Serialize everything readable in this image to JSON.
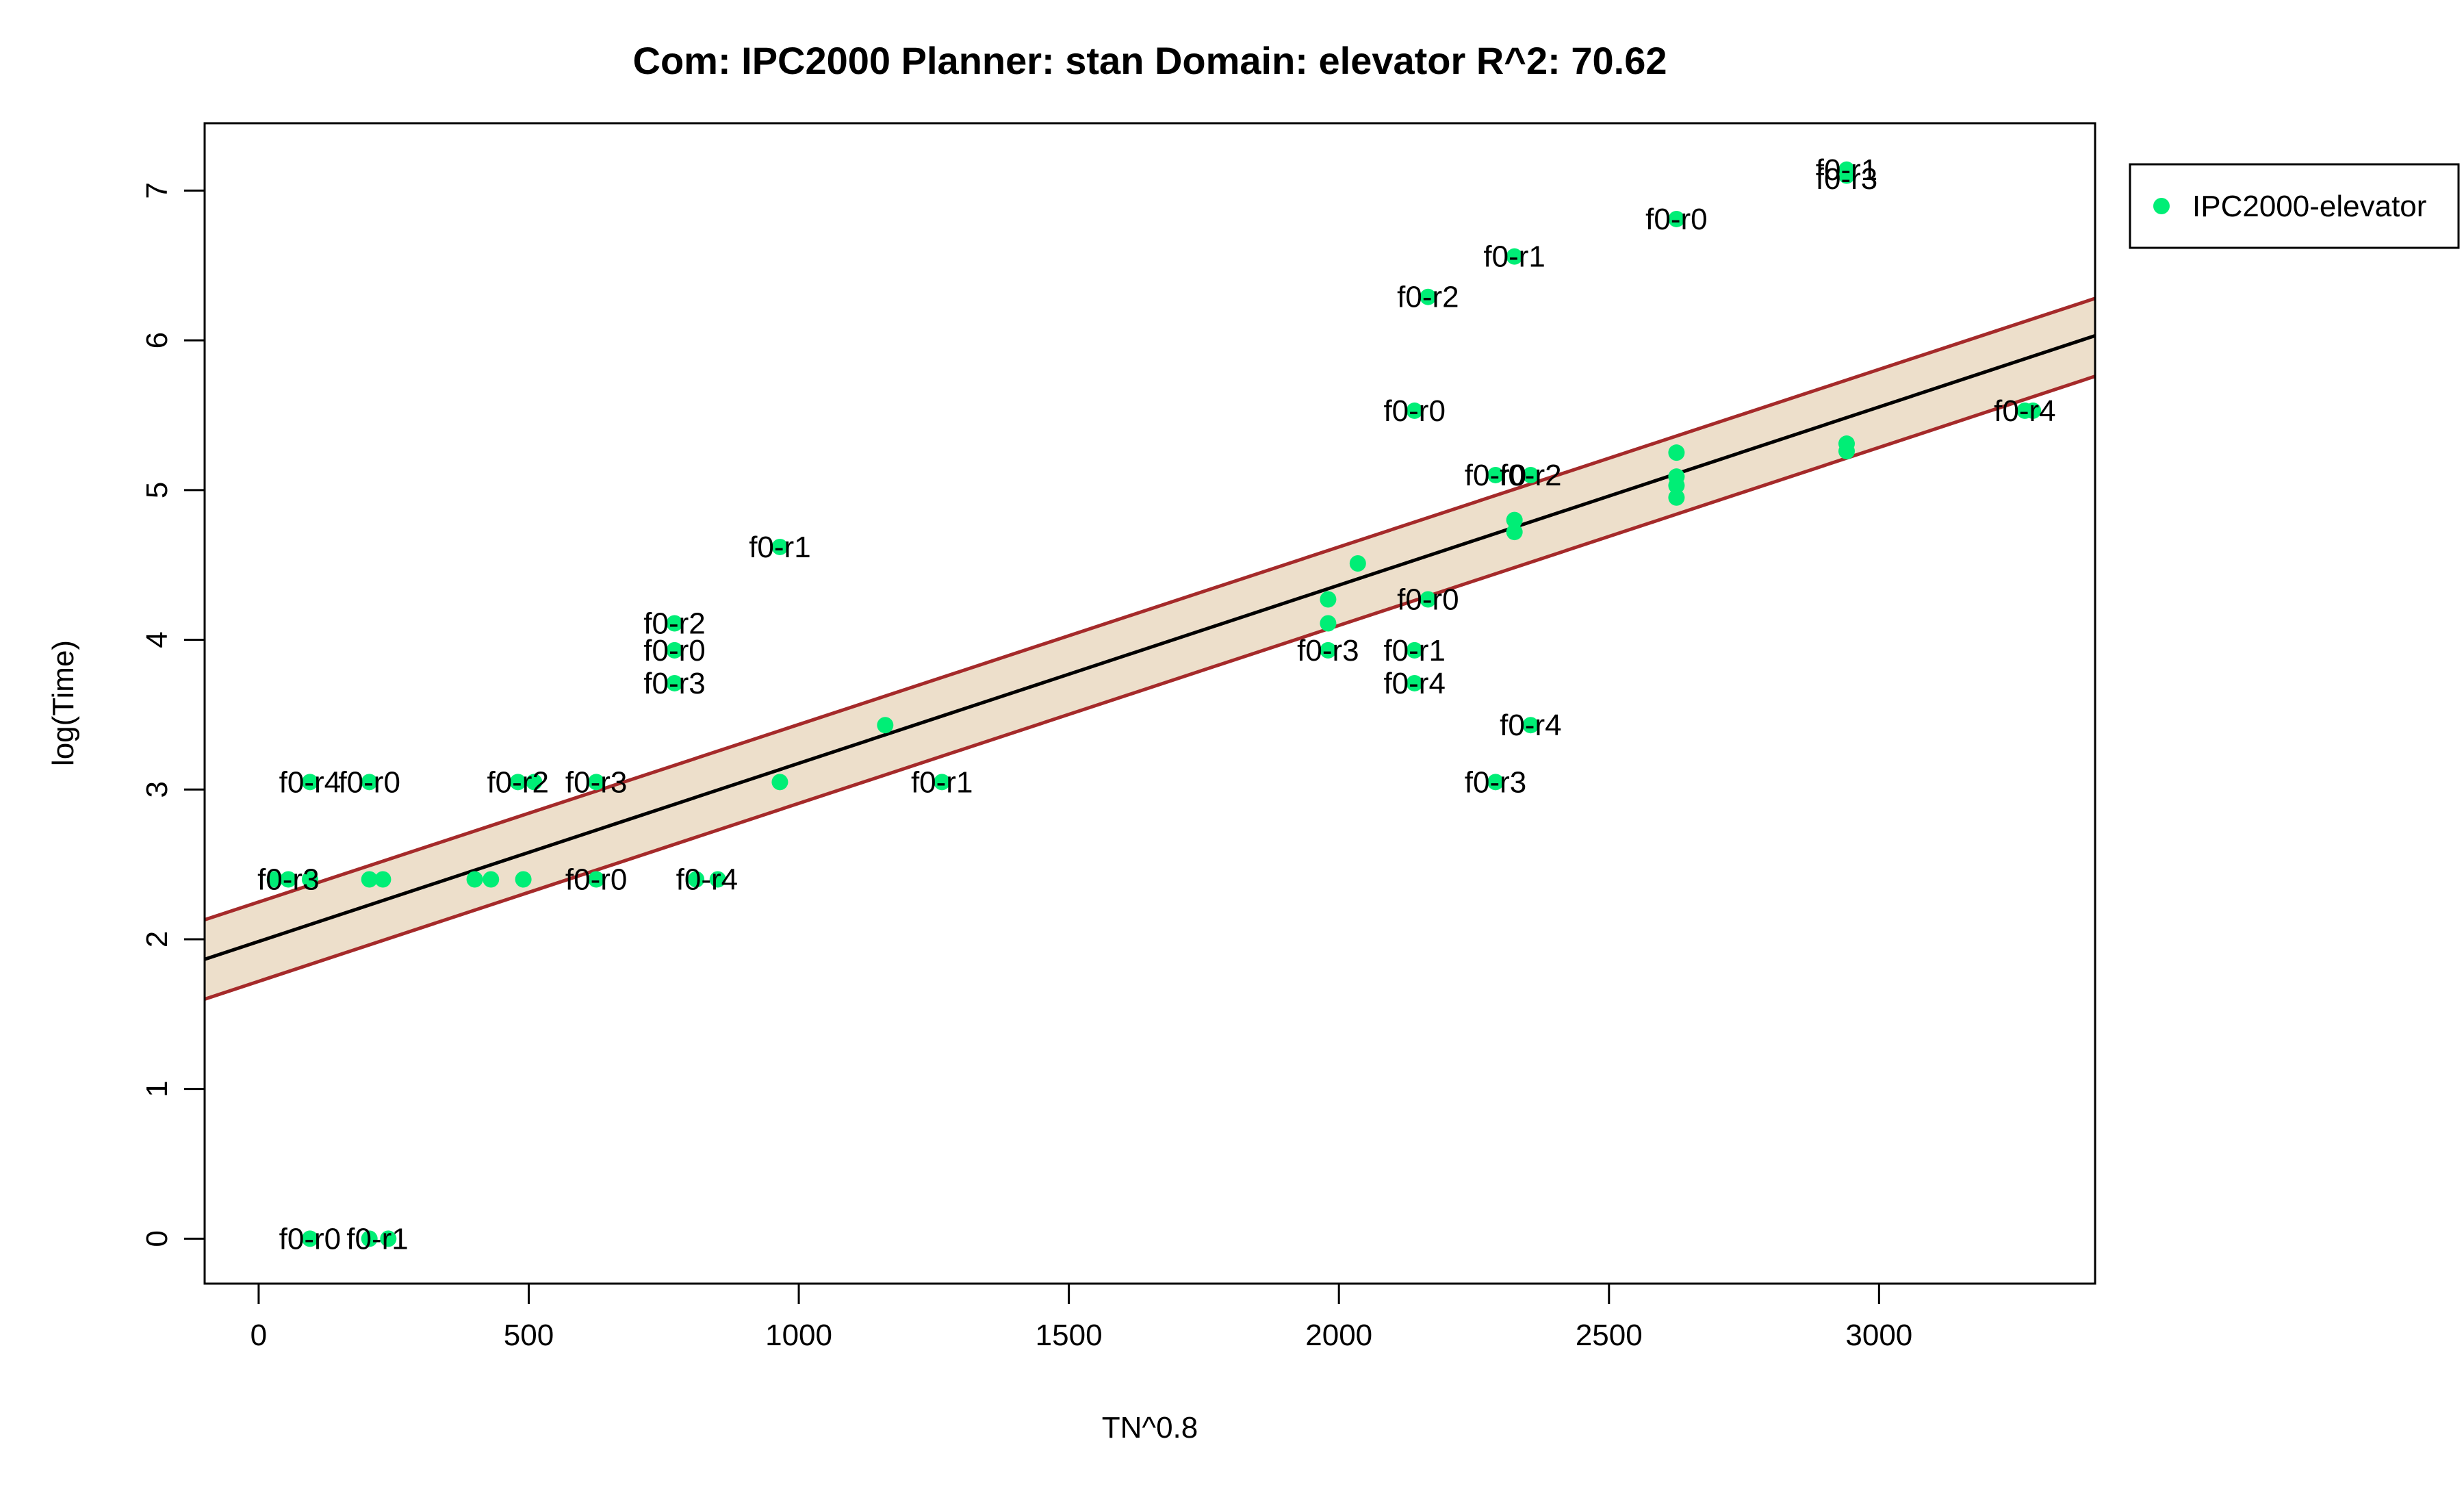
{
  "colors": {
    "band_fill": "#eddfcb",
    "band_line": "#a52a2a",
    "fit_line": "#000000",
    "point": "#00ee76"
  },
  "chart_data": {
    "type": "scatter",
    "title": "Com: IPC2000 Planner: stan Domain: elevator R^2: 70.62",
    "xlabel": "TN^0.8",
    "ylabel": "log(Time)",
    "xlim": [
      -100,
      3400
    ],
    "ylim": [
      -0.3,
      7.45
    ],
    "xticks": [
      0,
      500,
      1000,
      1500,
      2000,
      2500,
      3000
    ],
    "yticks": [
      0,
      1,
      2,
      3,
      4,
      5,
      6,
      7
    ],
    "grid": false,
    "legend": {
      "position": "top-right-outside",
      "entries": [
        "IPC2000-elevator"
      ]
    },
    "fit": {
      "intercept": 1.985,
      "slope": 0.00119
    },
    "band": {
      "upper": [
        [
          -100,
          2.13
        ],
        [
          3400,
          6.28
        ]
      ],
      "lower": [
        [
          -100,
          1.6
        ],
        [
          3400,
          5.76
        ]
      ]
    },
    "series": [
      {
        "name": "IPC2000-elevator",
        "points": [
          [
            2940,
            7.14
          ],
          [
            2940,
            7.1
          ],
          [
            2625,
            6.81
          ],
          [
            2325,
            6.56
          ],
          [
            2165,
            6.29
          ],
          [
            2140,
            5.53
          ],
          [
            3270,
            5.53
          ],
          [
            3285,
            5.53
          ],
          [
            2940,
            5.31
          ],
          [
            2940,
            5.26
          ],
          [
            2625,
            5.25
          ],
          [
            2290,
            5.1
          ],
          [
            2355,
            5.1
          ],
          [
            2625,
            5.09
          ],
          [
            2625,
            5.03
          ],
          [
            2625,
            4.95
          ],
          [
            2325,
            4.8
          ],
          [
            2325,
            4.72
          ],
          [
            965,
            4.62
          ],
          [
            2035,
            4.51
          ],
          [
            1980,
            4.27
          ],
          [
            2165,
            4.27
          ],
          [
            770,
            4.11
          ],
          [
            1980,
            4.11
          ],
          [
            770,
            3.93
          ],
          [
            1980,
            3.93
          ],
          [
            2140,
            3.93
          ],
          [
            770,
            3.71
          ],
          [
            2140,
            3.71
          ],
          [
            1160,
            3.43
          ],
          [
            2355,
            3.43
          ],
          [
            95,
            3.05
          ],
          [
            205,
            3.05
          ],
          [
            480,
            3.05
          ],
          [
            510,
            3.05
          ],
          [
            625,
            3.05
          ],
          [
            965,
            3.05
          ],
          [
            1265,
            3.05
          ],
          [
            2290,
            3.05
          ],
          [
            30,
            2.4
          ],
          [
            55,
            2.4
          ],
          [
            95,
            2.4
          ],
          [
            205,
            2.4
          ],
          [
            230,
            2.4
          ],
          [
            400,
            2.4
          ],
          [
            430,
            2.4
          ],
          [
            490,
            2.4
          ],
          [
            625,
            2.4
          ],
          [
            810,
            2.4
          ],
          [
            850,
            2.4
          ],
          [
            95,
            0.0
          ],
          [
            205,
            0.0
          ],
          [
            240,
            0.0
          ]
        ]
      }
    ],
    "annotations": [
      {
        "text": "f0-r1",
        "x": 2940,
        "y": 7.14
      },
      {
        "text": "f0-r3",
        "x": 2940,
        "y": 7.08
      },
      {
        "text": "f0-r0",
        "x": 2625,
        "y": 6.81
      },
      {
        "text": "f0-r1",
        "x": 2325,
        "y": 6.56
      },
      {
        "text": "f0-r2",
        "x": 2165,
        "y": 6.29
      },
      {
        "text": "f0-r0",
        "x": 2140,
        "y": 5.53
      },
      {
        "text": "f0-r4",
        "x": 3270,
        "y": 5.53
      },
      {
        "text": "f0-r0",
        "x": 2290,
        "y": 5.1
      },
      {
        "text": "f0-r2",
        "x": 2355,
        "y": 5.1
      },
      {
        "text": "f0-r1",
        "x": 965,
        "y": 4.62
      },
      {
        "text": "f0-r0",
        "x": 2165,
        "y": 4.27
      },
      {
        "text": "f0-r2",
        "x": 770,
        "y": 4.11
      },
      {
        "text": "f0-r0",
        "x": 770,
        "y": 3.93
      },
      {
        "text": "f0-r3",
        "x": 1980,
        "y": 3.93
      },
      {
        "text": "f0-r1",
        "x": 2140,
        "y": 3.93
      },
      {
        "text": "f0-r3",
        "x": 770,
        "y": 3.71
      },
      {
        "text": "f0-r4",
        "x": 2140,
        "y": 3.71
      },
      {
        "text": "f0-r4",
        "x": 2355,
        "y": 3.43
      },
      {
        "text": "f0-r4",
        "x": 95,
        "y": 3.05
      },
      {
        "text": "f0-r0",
        "x": 205,
        "y": 3.05
      },
      {
        "text": "f0-r2",
        "x": 480,
        "y": 3.05
      },
      {
        "text": "f0-r3",
        "x": 625,
        "y": 3.05
      },
      {
        "text": "f0-r1",
        "x": 1265,
        "y": 3.05
      },
      {
        "text": "f0-r3",
        "x": 2290,
        "y": 3.05
      },
      {
        "text": "f0-r3",
        "x": 55,
        "y": 2.4
      },
      {
        "text": "f0-r0",
        "x": 625,
        "y": 2.4
      },
      {
        "text": "f0-r4",
        "x": 830,
        "y": 2.4
      },
      {
        "text": "f0-r0",
        "x": 95,
        "y": 0.0
      },
      {
        "text": "f0-r1",
        "x": 220,
        "y": 0.0
      }
    ]
  }
}
